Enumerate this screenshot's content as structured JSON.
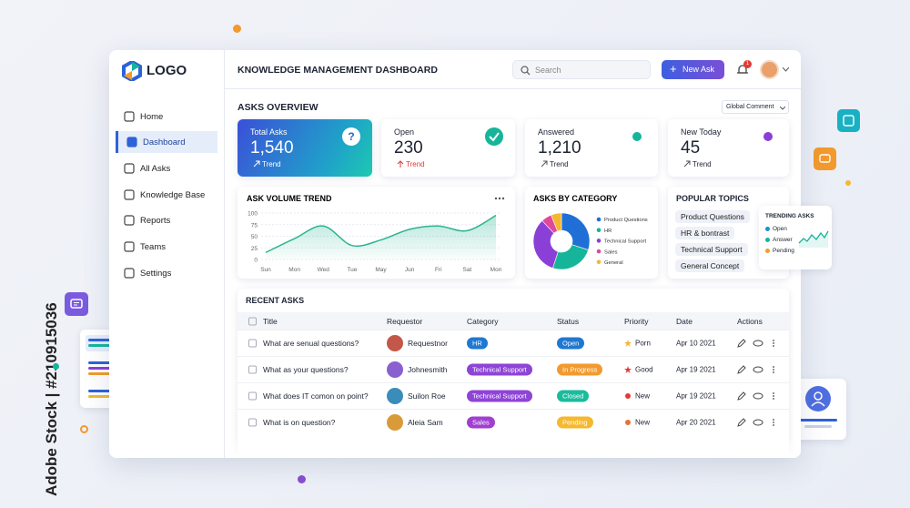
{
  "watermark": "Adobe Stock | #210915036",
  "sidebar": {
    "logo": "LOGO",
    "nav": [
      "Home",
      "Dashboard",
      "All Asks",
      "Knowledge Base",
      "Reports",
      "Teams",
      "Settings"
    ]
  },
  "header": {
    "title": "KNOWLEDGE MANAGEMENT DASHBOARD",
    "search": "Search",
    "button": "New Ask",
    "badge": "1"
  },
  "overview": {
    "title": "ASKS OVERVIEW",
    "filter": "Global Comment",
    "cards": [
      {
        "label": "Total Asks",
        "value": "1,540",
        "trend": "Trend"
      },
      {
        "label": "Open",
        "value": "230",
        "trend": "Trend"
      },
      {
        "label": "Answered",
        "value": "1,210",
        "trend": "Trend"
      },
      {
        "label": "New Today",
        "value": "45",
        "trend": "Trend"
      }
    ]
  },
  "chart_data": [
    {
      "type": "line",
      "title": "ASK VOLUME TREND",
      "categories": [
        "Sun",
        "Mon",
        "Wed",
        "Tue",
        "May",
        "Jun",
        "Fri",
        "Sat",
        "Mon"
      ],
      "values": [
        15,
        45,
        72,
        30,
        42,
        65,
        72,
        62,
        95
      ],
      "color": "#2bb58e",
      "ylim": [
        0,
        100
      ],
      "yticks": [
        0,
        25,
        50,
        75,
        100
      ],
      "grid": true
    },
    {
      "type": "pie",
      "title": "ASKS BY CATEGORY",
      "categories": [
        "Product Questions",
        "HR",
        "Technical Support",
        "Sales",
        "General"
      ],
      "values": [
        30,
        25,
        33,
        6,
        6
      ],
      "colors": [
        "#1f6fd6",
        "#16b59a",
        "#8a3fd6",
        "#e0489a",
        "#f5b731"
      ]
    }
  ],
  "popular_topics": {
    "title": "POPULAR TOPICS",
    "topics": [
      "Product Questions",
      "HR & bontrast",
      "Technical Support",
      "General Concept"
    ]
  },
  "trending": {
    "title": "TRENDING ASKS",
    "legend": [
      "Open",
      "Answer",
      "Pending"
    ]
  },
  "recent_asks": {
    "title": "RECENT ASKS",
    "columns": [
      "Title",
      "Requestor",
      "Category",
      "Status",
      "Priority",
      "Date",
      "Actions"
    ],
    "rows": [
      [
        "What are senual questions?",
        "Requestnor",
        "HR",
        "Open",
        "Porn",
        "Apr 10 2021"
      ],
      [
        "What as your questions?",
        "Johnesmith",
        "Technical Support",
        "In Progress",
        "Good",
        "Apr 19 2021"
      ],
      [
        "What does IT comon on point?",
        "Suilon Roe",
        "Technical Support",
        "Closed",
        "New",
        "Apr 19 2021"
      ],
      [
        "What is on question?",
        "Aleia Sam",
        "Sales",
        "Pending",
        "New",
        "Apr 20 2021"
      ]
    ]
  }
}
